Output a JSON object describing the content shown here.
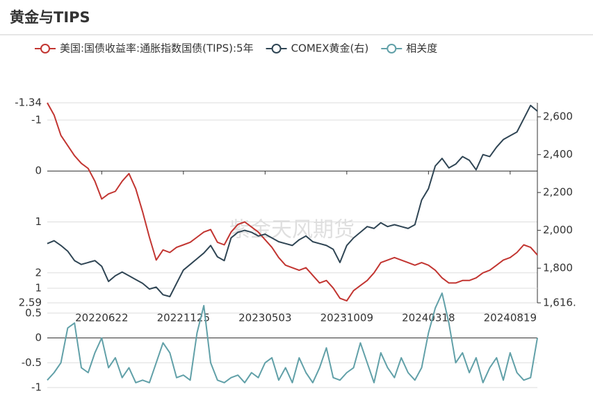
{
  "chart_data": [
    {
      "type": "line",
      "title": "黄金与TIPS",
      "watermark": "紫金天风期货",
      "categories": [
        null,
        null,
        null,
        null,
        null,
        null,
        null,
        null,
        "20220622",
        null,
        null,
        null,
        null,
        null,
        null,
        null,
        null,
        null,
        null,
        null,
        "20221125",
        null,
        null,
        null,
        null,
        null,
        null,
        null,
        null,
        null,
        null,
        null,
        "20230503",
        null,
        null,
        null,
        null,
        null,
        null,
        null,
        null,
        null,
        null,
        null,
        "20231009",
        null,
        null,
        null,
        null,
        null,
        null,
        null,
        null,
        null,
        null,
        null,
        "20240318",
        null,
        null,
        null,
        null,
        null,
        null,
        null,
        null,
        null,
        null,
        null,
        "20240819",
        null,
        null,
        null,
        null
      ],
      "series": [
        {
          "name": "美国:国债收益率:通胀指数国债(TIPS):5年",
          "color": "#c23531",
          "values": [
            -1.34,
            -1.1,
            -0.7,
            -0.5,
            -0.3,
            -0.15,
            -0.05,
            0.2,
            0.55,
            0.45,
            0.4,
            0.2,
            0.05,
            0.35,
            0.8,
            1.3,
            1.75,
            1.55,
            1.6,
            1.5,
            1.45,
            1.4,
            1.3,
            1.2,
            1.15,
            1.4,
            1.45,
            1.2,
            1.05,
            1.0,
            1.1,
            1.2,
            1.35,
            1.5,
            1.7,
            1.85,
            1.9,
            1.95,
            1.9,
            2.05,
            2.2,
            2.15,
            2.3,
            2.5,
            2.55,
            2.35,
            2.25,
            2.15,
            2.0,
            1.8,
            1.75,
            1.7,
            1.75,
            1.8,
            1.85,
            1.8,
            1.85,
            1.95,
            2.1,
            2.2,
            2.2,
            2.15,
            2.15,
            2.1,
            2.0,
            1.95,
            1.85,
            1.75,
            1.7,
            1.6,
            1.45,
            1.5,
            1.65
          ]
        },
        {
          "name": "COMEX黄金(右)",
          "color": "#2f4554",
          "axis": "y2",
          "values": [
            1930,
            1945,
            1920,
            1890,
            1840,
            1820,
            1830,
            1840,
            1810,
            1730,
            1760,
            1780,
            1760,
            1740,
            1720,
            1690,
            1700,
            1660,
            1650,
            1720,
            1790,
            1820,
            1850,
            1880,
            1920,
            1860,
            1840,
            1960,
            1990,
            2000,
            1990,
            1970,
            1980,
            1960,
            1940,
            1930,
            1920,
            1950,
            1970,
            1940,
            1930,
            1920,
            1900,
            1830,
            1920,
            1960,
            1990,
            2020,
            2010,
            2040,
            2020,
            2030,
            2020,
            2010,
            2030,
            2160,
            2220,
            2340,
            2380,
            2330,
            2350,
            2390,
            2370,
            2320,
            2400,
            2390,
            2440,
            2480,
            2500,
            2520,
            2590,
            2660,
            2630
          ]
        }
      ],
      "ylim": [
        -1.34,
        2.59
      ],
      "inverse": true,
      "yticks": [
        -1.34,
        -1,
        0,
        1,
        2,
        2.59
      ],
      "y2lim": [
        1616.9,
        2674
      ],
      "y2ticks": [
        {
          "value": 1616.9,
          "label": "1,616."
        },
        {
          "value": 1800,
          "label": "1,800"
        },
        {
          "value": 2000,
          "label": "2,000"
        },
        {
          "value": 2200,
          "label": "2,200"
        },
        {
          "value": 2400,
          "label": "2,400"
        },
        {
          "value": 2600,
          "label": "2,600"
        }
      ],
      "grid": true
    },
    {
      "type": "line",
      "series": [
        {
          "name": "相关度",
          "color": "#61a0a8",
          "values": [
            -0.85,
            -0.7,
            -0.5,
            0.2,
            0.3,
            -0.6,
            -0.7,
            -0.3,
            0.0,
            -0.6,
            -0.4,
            -0.8,
            -0.6,
            -0.9,
            -0.85,
            -0.9,
            -0.5,
            -0.1,
            -0.3,
            -0.8,
            -0.75,
            -0.85,
            0.1,
            0.65,
            -0.5,
            -0.85,
            -0.9,
            -0.8,
            -0.75,
            -0.9,
            -0.7,
            -0.8,
            -0.5,
            -0.4,
            -0.85,
            -0.6,
            -0.9,
            -0.4,
            -0.7,
            -0.9,
            -0.6,
            -0.2,
            -0.8,
            -0.85,
            -0.7,
            -0.6,
            -0.1,
            -0.5,
            -0.9,
            -0.3,
            -0.6,
            -0.8,
            -0.4,
            -0.7,
            -0.85,
            -0.6,
            0.1,
            0.6,
            0.9,
            0.3,
            -0.5,
            -0.3,
            -0.7,
            -0.4,
            -0.9,
            -0.6,
            -0.4,
            -0.85,
            -0.3,
            -0.7,
            -0.85,
            -0.8,
            0.0
          ]
        }
      ],
      "ylim": [
        -1,
        1
      ],
      "yticks": [
        -1,
        -0.5,
        0,
        0.5,
        1
      ],
      "grid": true
    }
  ]
}
